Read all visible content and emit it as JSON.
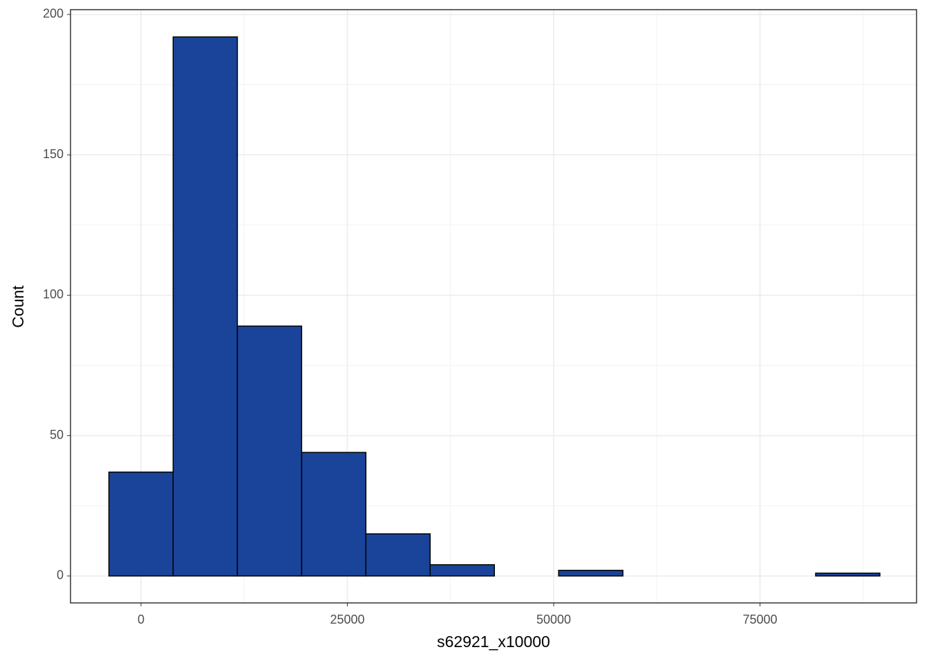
{
  "chart_data": {
    "type": "histogram",
    "x_label": "s62921_x10000",
    "y_label": "Count",
    "bins": [
      -3892.5,
      3892.5,
      11677.5,
      19462.5,
      27247.5,
      35032.5,
      42817.5,
      50602.5,
      58387.5,
      66172.5,
      73957.5,
      81742.5,
      89527.5
    ],
    "values": [
      37,
      192,
      89,
      44,
      15,
      4,
      0,
      2,
      0,
      0,
      0,
      1
    ],
    "color": "#1a4499",
    "xlim": [
      -8543,
      93970
    ],
    "ylim": [
      -9.6,
      201.7
    ],
    "xticks": [
      0,
      25000,
      50000,
      75000
    ],
    "yticks": [
      0,
      50,
      100,
      150,
      200
    ],
    "grid": true
  }
}
